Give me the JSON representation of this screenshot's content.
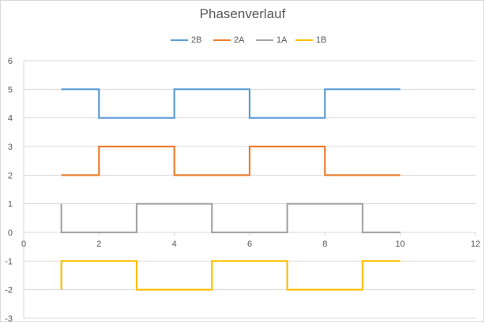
{
  "chart_data": {
    "type": "line",
    "title": "Phasenverlauf",
    "xlabel": "",
    "ylabel": "",
    "xlim": [
      0,
      12
    ],
    "ylim": [
      -3,
      6
    ],
    "x_ticks": [
      0,
      2,
      4,
      6,
      8,
      10,
      12
    ],
    "y_ticks": [
      6,
      5,
      4,
      3,
      2,
      1,
      0,
      -1,
      -2,
      -3
    ],
    "grid": "horizontal",
    "legend_position": "top",
    "series": [
      {
        "name": "2B",
        "color": "#5b9bd5",
        "x": [
          1,
          2,
          2,
          4,
          4,
          6,
          6,
          8,
          8,
          10
        ],
        "y": [
          5,
          5,
          4,
          4,
          5,
          5,
          4,
          4,
          5,
          5
        ]
      },
      {
        "name": "2A",
        "color": "#ed7d31",
        "x": [
          1,
          2,
          2,
          4,
          4,
          6,
          6,
          8,
          8,
          10
        ],
        "y": [
          2,
          2,
          3,
          3,
          2,
          2,
          3,
          3,
          2,
          2
        ]
      },
      {
        "name": "1A",
        "color": "#a5a5a5",
        "x": [
          1,
          1,
          3,
          3,
          5,
          5,
          7,
          7,
          9,
          9,
          10
        ],
        "y": [
          1,
          0,
          0,
          1,
          1,
          0,
          0,
          1,
          1,
          0,
          0
        ]
      },
      {
        "name": "1B",
        "color": "#ffc000",
        "x": [
          1,
          1,
          3,
          3,
          5,
          5,
          7,
          7,
          9,
          9,
          10
        ],
        "y": [
          -2,
          -1,
          -1,
          -2,
          -2,
          -1,
          -1,
          -2,
          -2,
          -1,
          -1
        ]
      }
    ]
  }
}
